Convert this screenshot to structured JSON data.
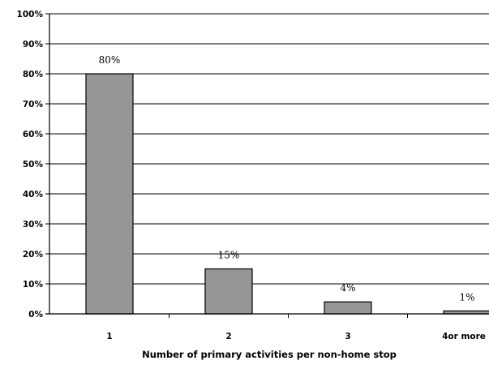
{
  "chart_data": {
    "type": "bar",
    "title": "",
    "xlabel": "Number of primary activities per non-home stop",
    "ylabel": "",
    "categories": [
      "1",
      "2",
      "3",
      "4or more"
    ],
    "values": [
      80,
      15,
      4,
      1
    ],
    "data_labels": [
      "80%",
      "15%",
      "4%",
      "1%"
    ],
    "ylim": [
      0,
      100
    ],
    "yticks": [
      0,
      10,
      20,
      30,
      40,
      50,
      60,
      70,
      80,
      90,
      100
    ],
    "ytick_labels": [
      "0%",
      "10%",
      "20%",
      "30%",
      "40%",
      "50%",
      "60%",
      "70%",
      "80%",
      "90%",
      "100%"
    ],
    "grid": true,
    "legend": "none",
    "colors": {
      "bar_fill": "#969696",
      "bar_stroke": "#000000",
      "grid": "#000000",
      "axis": "#000000"
    }
  }
}
